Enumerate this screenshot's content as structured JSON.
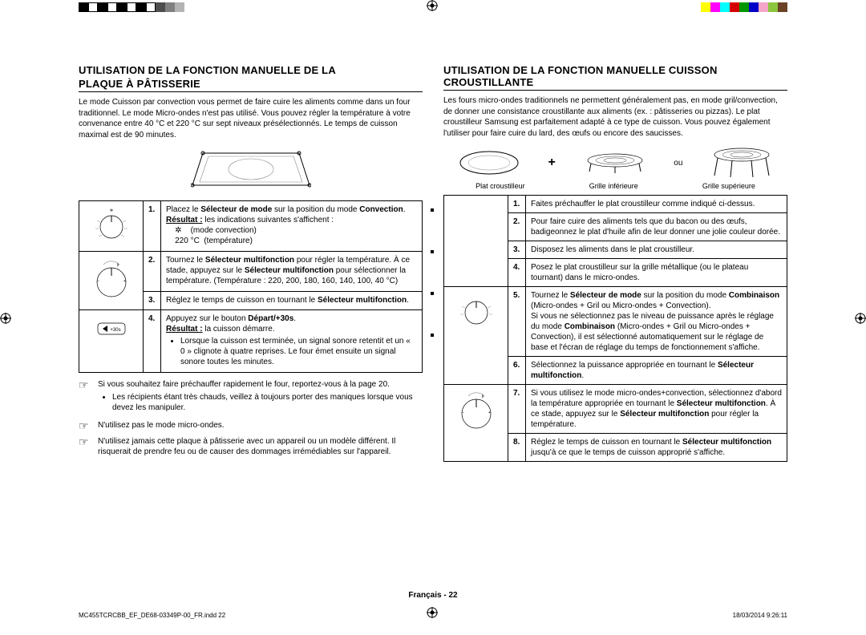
{
  "colorbar": [
    "#000000",
    "#ffffff",
    "#000000",
    "#ffffff",
    "#000000",
    "#ffffff",
    "#000000",
    "#ffffff",
    "#4d4d4d",
    "#808080",
    "#b3b3b3"
  ],
  "colorbar_right": [
    "#ffff00",
    "#ff00ff",
    "#00ffff",
    "#d40000",
    "#009600",
    "#0000c8",
    "#f4a6c9",
    "#8cc63f",
    "#6b4226"
  ],
  "left": {
    "title1": "UTILISATION DE LA FONCTION MANUELLE DE LA",
    "title2": "PLAQUE À PÂTISSERIE",
    "intro": "Le mode Cuisson par convection vous permet de faire cuire les aliments comme dans un four traditionnel. Le mode Micro-ondes n'est pas utilisé. Vous pouvez régler la température à votre convenance entre 40 °C et 220 °C sur sept niveaux présélectionnés. Le temps de cuisson maximal est de 90 minutes.",
    "steps": [
      {
        "n": "1.",
        "html": "Placez le <b>Sélecteur de mode</b> sur la position du mode <b>Convection</b>.<br><b><u>Résultat :</u></b> les indications suivantes s'affichent :<br>&nbsp;&nbsp;&nbsp;&nbsp;✲&nbsp;&nbsp;&nbsp;&nbsp;(mode convection)<br>&nbsp;&nbsp;&nbsp;&nbsp;220 °C&nbsp;&nbsp;(température)"
      },
      {
        "n": "2.",
        "html": "Tournez le <b>Sélecteur multifonction</b> pour régler la température. À ce stade, appuyez sur le <b>Sélecteur multifonction</b> pour sélectionner la température. (Température : 220, 200, 180, 160, 140, 100, 40 °C)"
      },
      {
        "n": "3.",
        "html": "Réglez le temps de cuisson en tournant le <b>Sélecteur multifonction</b>."
      },
      {
        "n": "4.",
        "html": "Appuyez sur le bouton <b>Départ/+30s</b>.<br><b><u>Résultat :</u></b> la cuisson démarre.<ul class=\"bul\"><li>Lorsque la cuisson est terminée, un signal sonore retentit et un « 0 » clignote à quatre reprises. Le four émet ensuite un signal sonore toutes les minutes.</li></ul>"
      }
    ],
    "notes": [
      {
        "items": [
          "Si vous souhaitez faire préchauffer rapidement le four, reportez-vous à la page 20.",
          "Les récipients étant très chauds, veillez à toujours porter des maniques lorsque vous devez les manipuler."
        ]
      },
      {
        "items": [
          "N'utilisez pas le mode micro-ondes."
        ]
      },
      {
        "items": [
          "N'utilisez jamais cette plaque à pâtisserie avec un appareil ou un modèle différent. Il risquerait de prendre feu ou de causer des dommages irrémédiables sur l'appareil."
        ]
      }
    ]
  },
  "right": {
    "title": "UTILISATION DE LA FONCTION MANUELLE CUISSON CROUSTILLANTE",
    "intro": "Les fours micro-ondes traditionnels ne permettent généralement pas, en mode gril/convection, de donner une consistance croustillante aux aliments (ex. : pâtisseries ou pizzas). Le plat croustilleur Samsung est parfaitement adapté à ce type de cuisson. Vous pouvez également l'utiliser pour faire cuire du lard, des œufs ou encore des saucisses.",
    "plat_labels": [
      "Plat croustilleur",
      "Grille inférieure",
      "Grille supérieure"
    ],
    "plus": "+",
    "ou": "ou",
    "steps": [
      {
        "n": "1.",
        "html": "Faites préchauffer le plat croustilleur comme indiqué ci-dessus."
      },
      {
        "n": "2.",
        "html": "Pour faire cuire des aliments tels que du bacon ou des œufs, badigeonnez le plat d'huile afin de leur donner une jolie couleur dorée."
      },
      {
        "n": "3.",
        "html": "Disposez les aliments dans le plat croustilleur."
      },
      {
        "n": "4.",
        "html": "Posez le plat croustilleur sur la grille métallique (ou le plateau tournant) dans le micro-ondes."
      },
      {
        "n": "5.",
        "html": "Tournez le <b>Sélecteur de mode</b> sur la position du mode <b>Combinaison</b> (Micro-ondes + Gril ou Micro-ondes + Convection).<br>Si vous ne sélectionnez pas le niveau de puissance après le réglage du mode <b>Combinaison</b> (Micro-ondes + Gril ou Micro-ondes + Convection), il est sélectionné automatiquement sur le réglage de base et l'écran de réglage du temps de fonctionnement s'affiche."
      },
      {
        "n": "6.",
        "html": "Sélectionnez la puissance appropriée en tournant le <b>Sélecteur multifonction</b>."
      },
      {
        "n": "7.",
        "html": "Si vous utilisez le mode micro-ondes+convection, sélectionnez d'abord la température appropriée en tournant le <b>Sélecteur multifonction</b>. À ce stade, appuyez sur le <b>Sélecteur multifonction</b> pour régler la température."
      },
      {
        "n": "8.",
        "html": "Réglez le temps de cuisson en tournant le <b>Sélecteur multifonction</b> jusqu'à ce que le temps de cuisson approprié s'affiche."
      }
    ]
  },
  "footer": {
    "page": "Français - 22",
    "left": "MC455TCRCBB_EF_DE68-03349P-00_FR.indd   22",
    "right": "18/03/2014   9:26:11"
  }
}
